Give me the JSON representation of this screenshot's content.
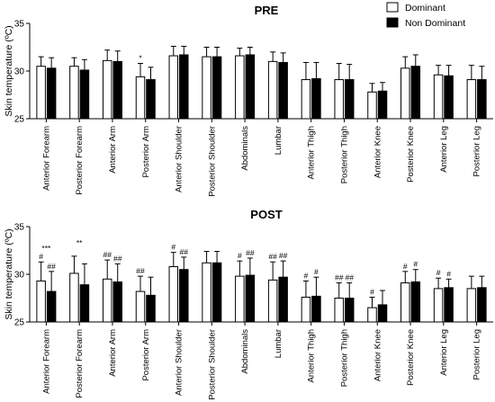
{
  "chart_data": [
    {
      "type": "bar",
      "title": "PRE",
      "xlabel": "",
      "ylabel": "Skin temperature (ºC)",
      "ylim": [
        25,
        35
      ],
      "yticks": [
        25,
        30,
        35
      ],
      "grid": false,
      "legend": "top-right",
      "categories": [
        "Anterior Forearm",
        "Posterior Forearm",
        "Anterior Arm",
        "Posterior Arm",
        "Anterior Shoulder",
        "Posterior Shoulder",
        "Abdominals",
        "Lumbar",
        "Anterior Thigh",
        "Posterior Thigh",
        "Anterior Knee",
        "Posterior Knee",
        "Anterior Leg",
        "Posterior Leg"
      ],
      "series": [
        {
          "name": "Dominant",
          "color": "#ffffff",
          "values": [
            30.5,
            30.5,
            31.1,
            29.4,
            31.6,
            31.5,
            31.6,
            31.0,
            29.1,
            29.1,
            27.8,
            30.3,
            29.6,
            29.1
          ],
          "errors": [
            1.0,
            0.9,
            1.1,
            1.4,
            1.0,
            1.0,
            0.8,
            1.0,
            1.8,
            1.7,
            0.9,
            1.2,
            1.0,
            1.5
          ],
          "annotations": [
            "",
            "",
            "",
            "*",
            "",
            "",
            "",
            "",
            "",
            "",
            "",
            "",
            "",
            ""
          ]
        },
        {
          "name": "Non Dominant",
          "color": "#000000",
          "values": [
            30.3,
            30.1,
            31.0,
            29.1,
            31.7,
            31.5,
            31.7,
            30.9,
            29.2,
            29.1,
            27.9,
            30.5,
            29.5,
            29.1
          ],
          "errors": [
            1.1,
            1.1,
            1.1,
            1.3,
            0.9,
            1.0,
            0.8,
            1.0,
            1.7,
            1.6,
            0.9,
            1.2,
            1.1,
            1.4
          ],
          "annotations": [
            "",
            "",
            "",
            "",
            "",
            "",
            "",
            "",
            "",
            "",
            "",
            "",
            "",
            ""
          ]
        }
      ]
    },
    {
      "type": "bar",
      "title": "POST",
      "xlabel": "",
      "ylabel": "Skin temperature (ºC)",
      "ylim": [
        25,
        35
      ],
      "yticks": [
        25,
        30,
        35
      ],
      "grid": false,
      "categories": [
        "Anterior Forearm",
        "Posterior Forearm",
        "Anterior Arm",
        "Posterior Arm",
        "Anterior Shoulder",
        "Posterior Shoulder",
        "Abdominals",
        "Lumbar",
        "Anterior Thigh",
        "Posterior Thigh",
        "Anterior Knee",
        "Posterior Knee",
        "Anterior Leg",
        "Posterior Leg"
      ],
      "pair_annotations": [
        "***",
        "**",
        "",
        "",
        "",
        "",
        "",
        "",
        "",
        "",
        "",
        "",
        "",
        ""
      ],
      "series": [
        {
          "name": "Dominant",
          "color": "#ffffff",
          "values": [
            29.3,
            30.1,
            29.5,
            28.2,
            30.8,
            31.2,
            29.8,
            29.4,
            27.6,
            27.5,
            26.5,
            29.1,
            28.5,
            28.5
          ],
          "errors": [
            2.0,
            1.8,
            2.0,
            1.6,
            1.5,
            1.2,
            1.6,
            1.9,
            1.7,
            1.6,
            1.1,
            1.2,
            1.1,
            1.3
          ],
          "annotations": [
            "#",
            "",
            "##",
            "##",
            "#",
            "",
            "#",
            "##",
            "#",
            "##",
            "#",
            "#",
            "#",
            ""
          ]
        },
        {
          "name": "Non Dominant",
          "color": "#000000",
          "values": [
            28.2,
            28.9,
            29.2,
            27.8,
            30.5,
            31.2,
            29.9,
            29.7,
            27.7,
            27.5,
            26.8,
            29.2,
            28.6,
            28.6
          ],
          "errors": [
            2.1,
            2.2,
            1.9,
            1.9,
            1.3,
            1.2,
            1.8,
            1.7,
            2.0,
            1.6,
            1.5,
            1.3,
            0.9,
            1.2
          ],
          "annotations": [
            "##",
            "",
            "##",
            "",
            "##",
            "",
            "##",
            "##",
            "#",
            "##",
            "",
            "#",
            "#",
            ""
          ]
        }
      ]
    }
  ]
}
